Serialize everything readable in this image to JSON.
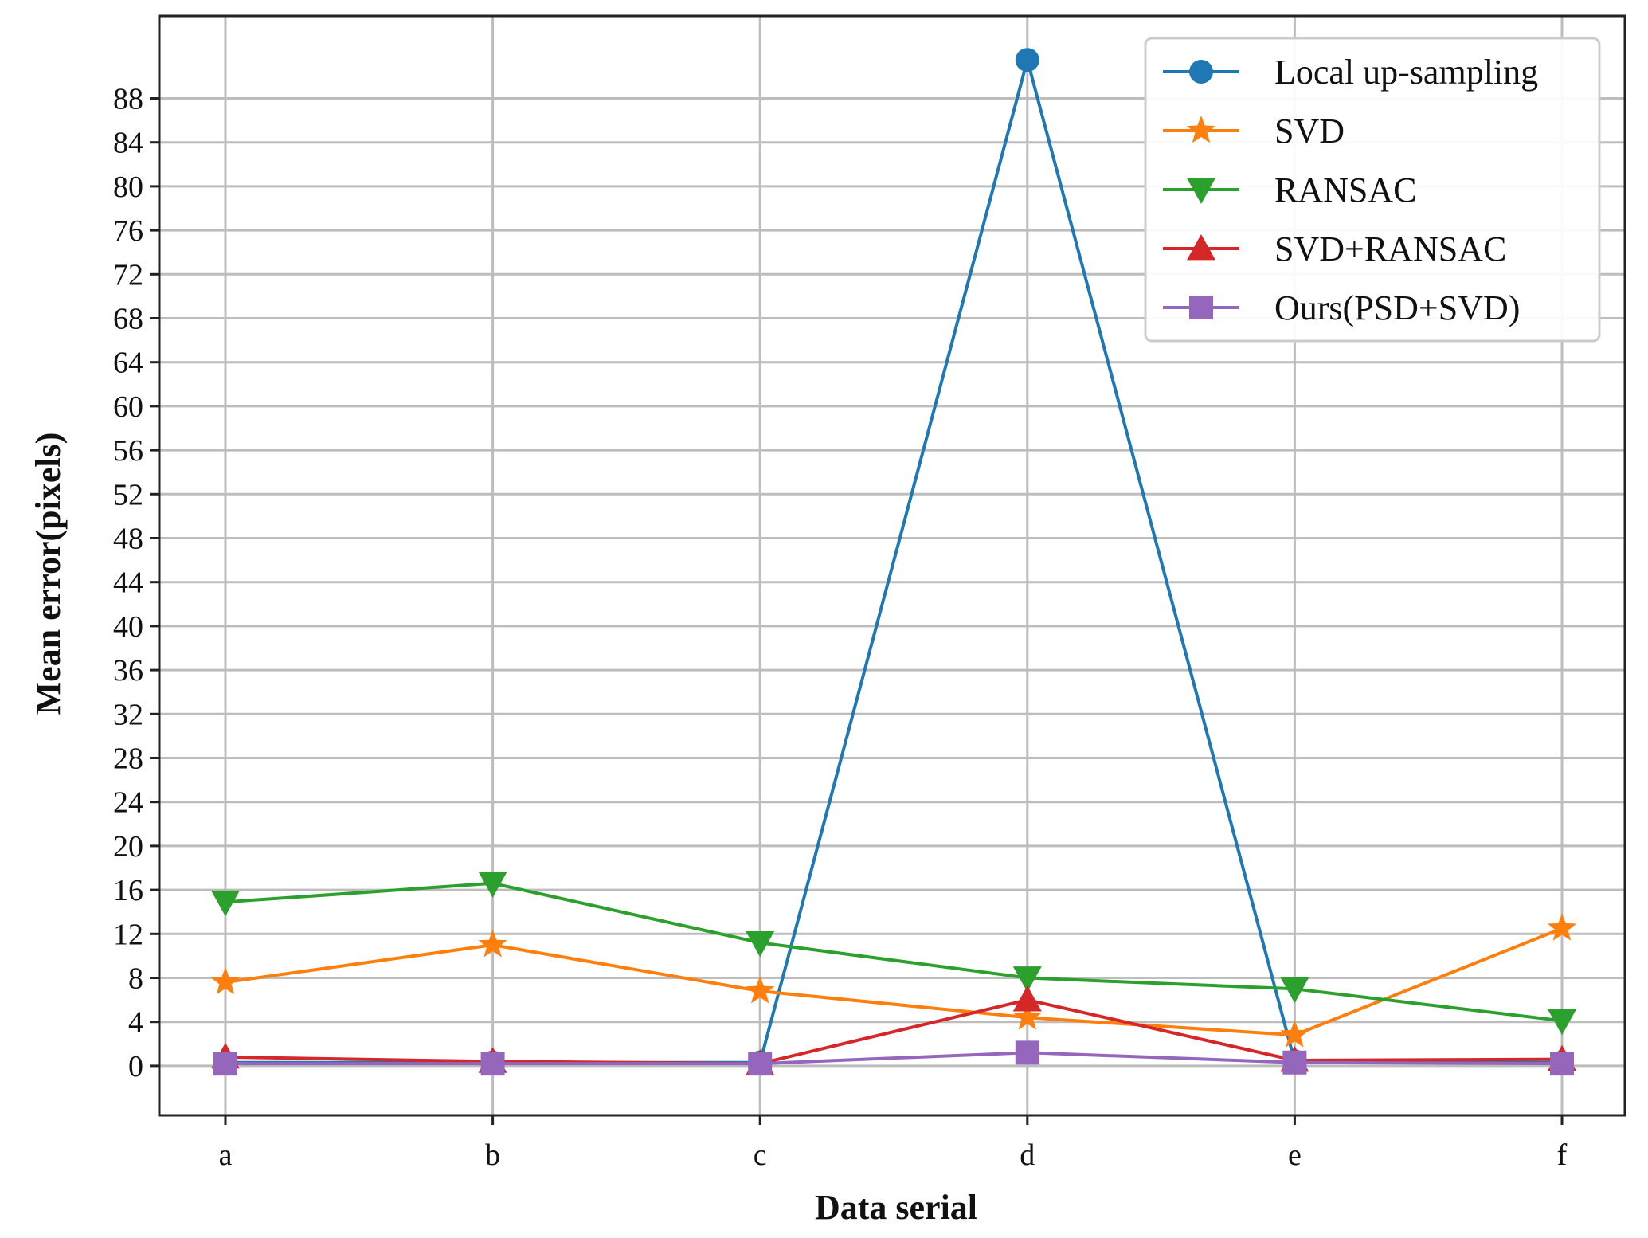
{
  "chart_data": {
    "type": "line",
    "title": "",
    "xlabel": "Data serial",
    "ylabel": "Mean error(pixels)",
    "categories": [
      "a",
      "b",
      "c",
      "d",
      "e",
      "f"
    ],
    "ylim": [
      -4.5,
      95.5
    ],
    "yticks": [
      0,
      4,
      8,
      12,
      16,
      20,
      24,
      28,
      32,
      36,
      40,
      44,
      48,
      52,
      56,
      60,
      64,
      68,
      72,
      76,
      80,
      84,
      88
    ],
    "grid": true,
    "legend_position": "top-right",
    "series": [
      {
        "name": "Local up-sampling",
        "color": "#1f77b4",
        "marker": "circle",
        "values": [
          0.3,
          0.3,
          0.3,
          91.5,
          0.4,
          0.3
        ]
      },
      {
        "name": "SVD",
        "color": "#ff7f0e",
        "marker": "star",
        "values": [
          7.6,
          11.0,
          6.8,
          4.4,
          2.8,
          12.5
        ]
      },
      {
        "name": "RANSAC",
        "color": "#2ca02c",
        "marker": "triangle-down",
        "values": [
          14.9,
          16.6,
          11.2,
          8.0,
          7.0,
          4.1
        ]
      },
      {
        "name": "SVD+RANSAC",
        "color": "#d62728",
        "marker": "triangle-up",
        "values": [
          0.8,
          0.4,
          0.2,
          6.0,
          0.5,
          0.6
        ]
      },
      {
        "name": "Ours(PSD+SVD)",
        "color": "#9467bd",
        "marker": "square",
        "values": [
          0.2,
          0.2,
          0.2,
          1.2,
          0.3,
          0.2
        ]
      }
    ]
  }
}
